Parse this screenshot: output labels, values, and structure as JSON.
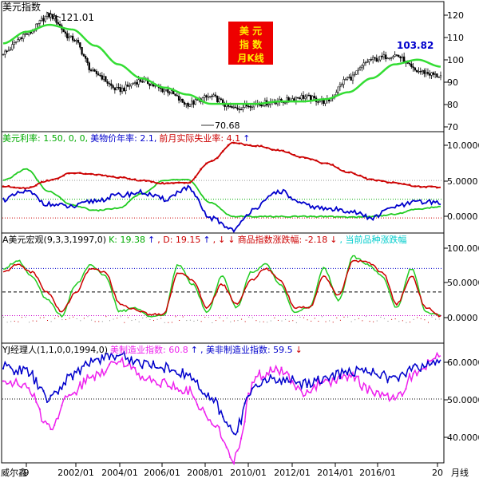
{
  "colors": {
    "background": "#ffffff",
    "border": "#000000",
    "kline": "#000000",
    "ma_green": "#33dd33",
    "red": "#cc0000",
    "blue": "#0000cc",
    "magenta": "#ee22ee",
    "cyan": "#00cccc",
    "badge_bg": "#ee0000",
    "badge_fg": "#ffee00",
    "ref_gray": "#9a9a9a"
  },
  "badge": {
    "lines": [
      "美  元",
      "指  数",
      "月K线"
    ]
  },
  "footer": {
    "left_label": "威尔鑫",
    "right_label": "月线",
    "x_labels": [
      "9",
      "2002/01",
      "2004/01",
      "2006/01",
      "2008/01",
      "2010/01",
      "2012/01",
      "2014/01",
      "2016/01",
      "20"
    ]
  },
  "chart_data": [
    {
      "type": "candlestick",
      "title": "美元指数",
      "y_ticks": [
        "120",
        "110",
        "100",
        "90",
        "80",
        "70"
      ],
      "ylim": [
        67,
        123
      ],
      "x": [
        "1999",
        "2000",
        "2001",
        "2002",
        "2003",
        "2004",
        "2005",
        "2006",
        "2007",
        "2008",
        "2009",
        "2010",
        "2011",
        "2012",
        "2013",
        "2014",
        "2015",
        "2016",
        "2017",
        "2018"
      ],
      "series": [
        {
          "name": "close",
          "values": [
            101,
            109,
            117,
            107,
            92,
            85,
            89,
            85,
            79,
            82,
            77,
            79,
            80,
            82,
            80,
            90,
            98,
            100,
            93,
            91
          ]
        },
        {
          "name": "moving average",
          "values": [
            105,
            110,
            113,
            111,
            104,
            96,
            90,
            86,
            83,
            79,
            79,
            79,
            80,
            80,
            81,
            84,
            90,
            96,
            98,
            95
          ]
        }
      ],
      "annotations": [
        {
          "text": "121.01",
          "x": "2001/07",
          "y": 121.01
        },
        {
          "text": "70.68",
          "x": "2008/03",
          "y": 70.68
        },
        {
          "text": "103.82",
          "x": "2017/01",
          "y": 103.82
        }
      ]
    },
    {
      "type": "line",
      "title": "美元利率",
      "legend": [
        {
          "text": "美元利率: 1.50, 0, 0,",
          "color": "#00aa00"
        },
        {
          "text": "美物价年率: 2.1,",
          "color": "#0000cc"
        },
        {
          "text": "前月实际失业率: 4.1",
          "color": "#cc0000"
        },
        {
          "text": "↑",
          "color": "#0000cc"
        }
      ],
      "y_ticks": [
        "10.0000",
        "5.0000",
        "0.0000"
      ],
      "ylim": [
        -2,
        11.5
      ],
      "x": [
        "1999",
        "2000",
        "2001",
        "2002",
        "2003",
        "2004",
        "2005",
        "2006",
        "2007",
        "2008",
        "2009",
        "2010",
        "2011",
        "2012",
        "2013",
        "2014",
        "2015",
        "2016",
        "2017",
        "2018"
      ],
      "series": [
        {
          "name": "美元利率",
          "values": [
            5.0,
            6.5,
            3.5,
            1.7,
            1.0,
            1.3,
            3.2,
            5.0,
            5.2,
            2.0,
            0.2,
            0.2,
            0.2,
            0.2,
            0.2,
            0.1,
            0.2,
            0.5,
            1.2,
            1.5
          ]
        },
        {
          "name": "美物价年率",
          "values": [
            2.5,
            3.5,
            1.8,
            1.5,
            2.3,
            3.0,
            3.4,
            2.5,
            4.0,
            0.0,
            -1.5,
            1.5,
            3.6,
            1.8,
            1.2,
            1.0,
            0.0,
            1.5,
            2.1,
            2.1
          ]
        },
        {
          "name": "前月实际失业率",
          "values": [
            4.2,
            4.0,
            5.0,
            6.0,
            5.8,
            5.4,
            5.0,
            4.6,
            4.7,
            7.5,
            10.0,
            9.6,
            9.0,
            8.1,
            7.3,
            6.1,
            5.1,
            4.7,
            4.2,
            4.1
          ]
        }
      ],
      "reference_lines": [
        {
          "y": 5.0,
          "style": "dotted",
          "color": "#9a9a9a"
        },
        {
          "y": 2.5,
          "style": "dotted",
          "color": "#00aa00"
        },
        {
          "y": 0.0,
          "style": "dotted",
          "color": "#cc0000"
        }
      ]
    },
    {
      "type": "line",
      "title": "A美元宏观(9,3,3,1997,0)",
      "legend": [
        {
          "text": "A美元宏观(9,3,3,1997,0)",
          "color": "#000000"
        },
        {
          "text": "K: 19.38",
          "color": "#00aa00"
        },
        {
          "text": "↑",
          "color": "#0000cc"
        },
        {
          "text": ", D: 19.15",
          "color": "#cc0000"
        },
        {
          "text": "↑",
          "color": "#0000cc"
        },
        {
          "text": ",",
          "color": "#cc0000"
        },
        {
          "text": "↓",
          "color": "#cc0000"
        },
        {
          "text": "↓",
          "color": "#cc0000"
        },
        {
          "text": "商品指数涨跌幅: -2.18",
          "color": "#cc0000"
        },
        {
          "text": "↓",
          "color": "#cc0000"
        },
        {
          "text": ", 当前品种涨跌幅",
          "color": "#00cccc"
        }
      ],
      "y_ticks": [
        "100.0000",
        "50.0000",
        "0.0000"
      ],
      "ylim": [
        -15,
        125
      ],
      "series": [
        {
          "name": "K",
          "values": [
            80,
            90,
            70,
            40,
            20,
            60,
            85,
            70,
            25,
            30,
            20,
            20,
            85,
            60,
            25,
            70,
            30,
            75,
            85,
            60,
            25,
            30,
            80,
            40,
            95,
            85,
            70,
            30,
            80,
            25,
            19.38
          ]
        },
        {
          "name": "D",
          "values": [
            75,
            85,
            75,
            50,
            25,
            50,
            80,
            75,
            35,
            28,
            22,
            22,
            75,
            65,
            30,
            60,
            35,
            65,
            80,
            65,
            30,
            30,
            70,
            45,
            90,
            88,
            75,
            35,
            70,
            30,
            19.15
          ]
        }
      ],
      "reference_lines": [
        {
          "y": 80,
          "style": "dotted",
          "color": "#0000cc"
        },
        {
          "y": 50,
          "style": "dashed",
          "color": "#000000"
        },
        {
          "y": 20,
          "style": "dotted",
          "color": "#cc00cc"
        }
      ]
    },
    {
      "type": "line",
      "title": "YJ经理人(1,1,0,0,1994,0)",
      "legend": [
        {
          "text": "YJ经理人(1,1,0,0,1994,0)",
          "color": "#000000"
        },
        {
          "text": "美制造业指数: 60.8",
          "color": "#ee22ee"
        },
        {
          "text": "↑",
          "color": "#0000cc"
        },
        {
          "text": ", 美非制造业指数: 59.5",
          "color": "#0000cc"
        },
        {
          "text": "↓",
          "color": "#cc0000"
        }
      ],
      "y_ticks": [
        "60.0000",
        "50.0000",
        "40.0000"
      ],
      "ylim": [
        34,
        64
      ],
      "x": [
        "1999",
        "2000",
        "2001",
        "2002",
        "2003",
        "2004",
        "2005",
        "2006",
        "2007",
        "2008",
        "2009",
        "2010",
        "2011",
        "2012",
        "2013",
        "2014",
        "2015",
        "2016",
        "2017",
        "2018"
      ],
      "series": [
        {
          "name": "美制造业指数",
          "values": [
            55,
            53,
            43,
            52,
            56,
            60,
            56,
            54,
            52,
            45,
            35,
            56,
            57,
            52,
            54,
            56,
            52,
            50,
            57,
            60.8
          ]
        },
        {
          "name": "美非制造业指数",
          "values": [
            58,
            57,
            50,
            56,
            60,
            61,
            59,
            58,
            56,
            50,
            42,
            54,
            55,
            54,
            55,
            57,
            57,
            55,
            58,
            59.5
          ]
        }
      ],
      "reference_lines": [
        {
          "y": 50,
          "style": "dotted",
          "color": "#000000"
        }
      ]
    }
  ]
}
